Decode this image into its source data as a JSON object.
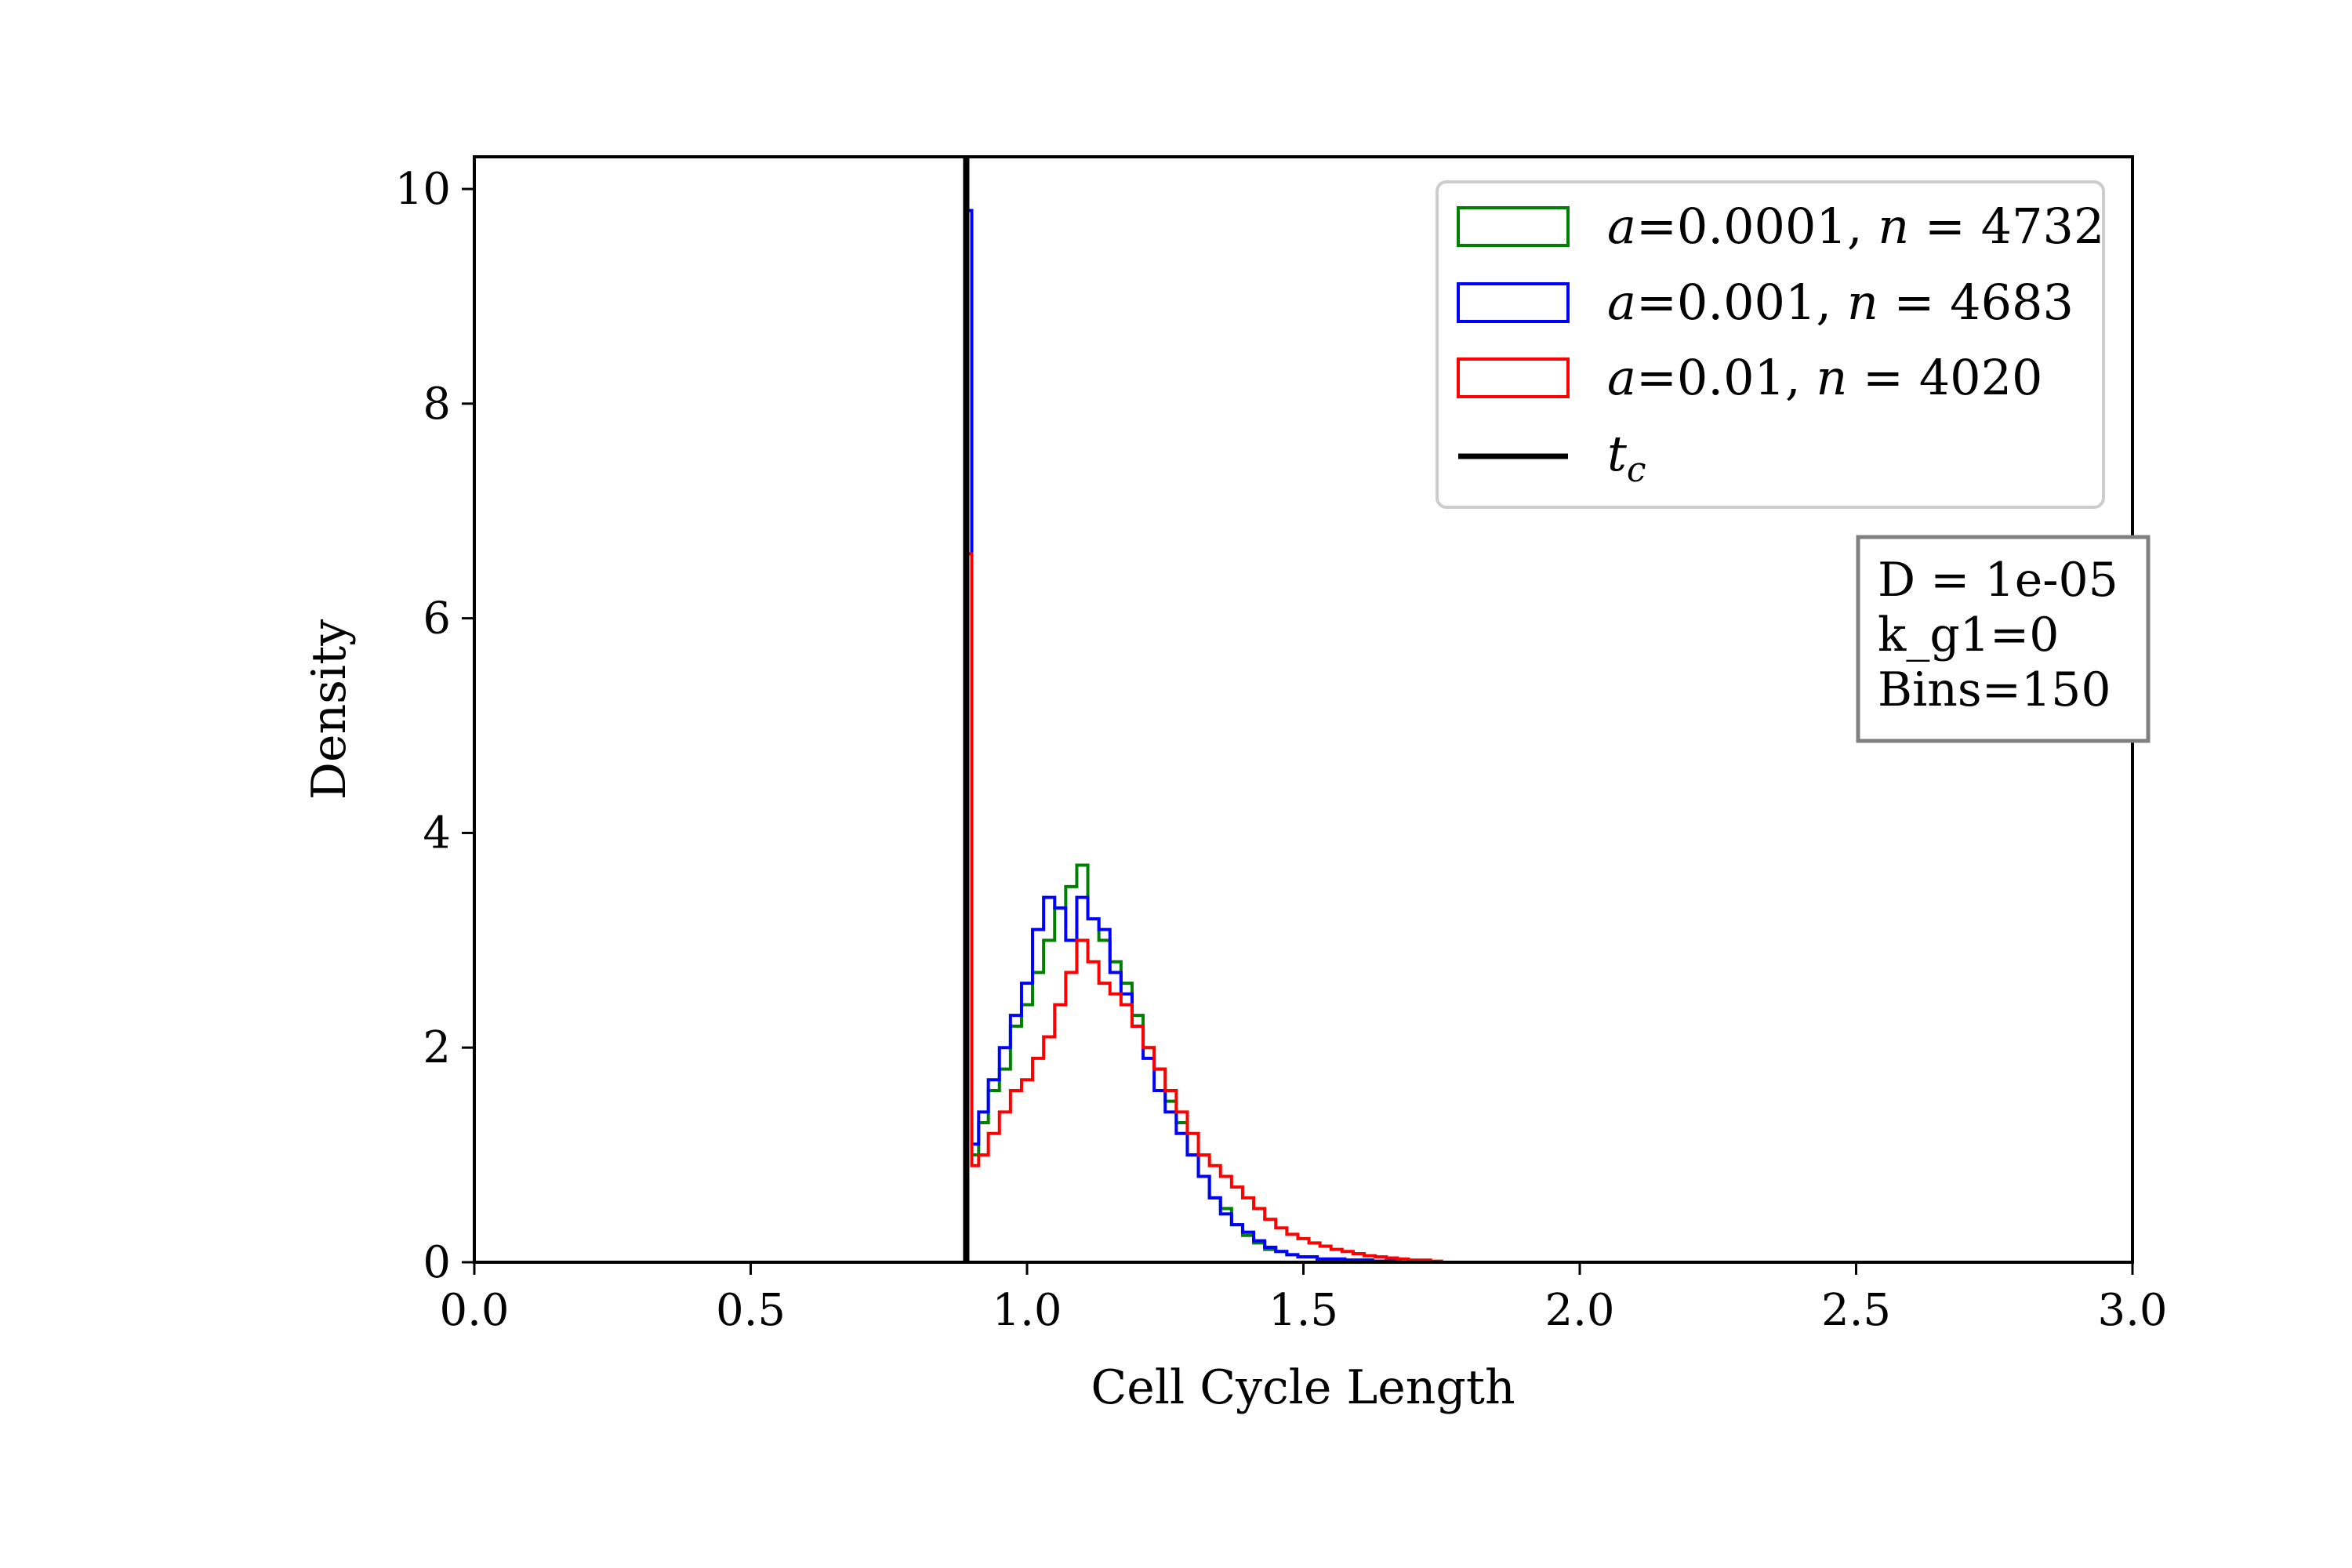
{
  "chart_data": {
    "type": "histogram",
    "xlabel": "Cell Cycle Length",
    "ylabel": "Density",
    "xlim": [
      0.0,
      3.0
    ],
    "ylim": [
      0,
      10.3
    ],
    "xticks": [
      "0.0",
      "0.5",
      "1.0",
      "1.5",
      "2.0",
      "2.5",
      "3.0"
    ],
    "yticks": [
      "0",
      "2",
      "4",
      "6",
      "8",
      "10"
    ],
    "grid": false,
    "legend_position": "top-right",
    "vline": {
      "name": "t_c",
      "x": 0.89,
      "color": "#000000"
    },
    "info_box": [
      "D = 1e-05",
      "k_g1=0",
      "Bins=150"
    ],
    "series": [
      {
        "name": "a=0.0001, n = 4732",
        "legend": {
          "a": "a",
          "a_val": "=0.0001, ",
          "n": "n",
          "n_val": " = 4732"
        },
        "color": "#008000",
        "x": [
          0.895,
          0.905,
          0.92,
          0.94,
          0.96,
          0.98,
          1.0,
          1.02,
          1.04,
          1.06,
          1.08,
          1.1,
          1.12,
          1.14,
          1.16,
          1.18,
          1.2,
          1.22,
          1.24,
          1.26,
          1.28,
          1.3,
          1.32,
          1.34,
          1.36,
          1.38,
          1.4,
          1.42,
          1.44,
          1.46,
          1.48,
          1.5,
          1.55,
          1.6,
          1.65,
          1.7
        ],
        "y": [
          9.8,
          1.0,
          1.3,
          1.6,
          1.8,
          2.2,
          2.4,
          2.7,
          3.0,
          3.3,
          3.5,
          3.7,
          3.2,
          3.0,
          2.8,
          2.6,
          2.3,
          2.0,
          1.8,
          1.5,
          1.3,
          1.0,
          0.8,
          0.6,
          0.5,
          0.35,
          0.25,
          0.18,
          0.12,
          0.1,
          0.07,
          0.05,
          0.03,
          0.02,
          0.01,
          0.0
        ]
      },
      {
        "name": "a=0.001, n = 4683",
        "legend": {
          "a": "a",
          "a_val": "=0.001, ",
          "n": "n",
          "n_val": " = 4683"
        },
        "color": "#0000ff",
        "x": [
          0.895,
          0.905,
          0.92,
          0.94,
          0.96,
          0.98,
          1.0,
          1.02,
          1.04,
          1.06,
          1.08,
          1.1,
          1.12,
          1.14,
          1.16,
          1.18,
          1.2,
          1.22,
          1.24,
          1.26,
          1.28,
          1.3,
          1.32,
          1.34,
          1.36,
          1.38,
          1.4,
          1.42,
          1.44,
          1.46,
          1.48,
          1.5,
          1.55,
          1.6,
          1.65,
          1.7
        ],
        "y": [
          9.8,
          1.1,
          1.4,
          1.7,
          2.0,
          2.3,
          2.6,
          3.1,
          3.4,
          3.3,
          3.0,
          3.4,
          3.2,
          3.1,
          2.7,
          2.5,
          2.2,
          1.9,
          1.6,
          1.4,
          1.2,
          1.0,
          0.8,
          0.6,
          0.45,
          0.35,
          0.28,
          0.2,
          0.14,
          0.1,
          0.07,
          0.05,
          0.03,
          0.02,
          0.01,
          0.0
        ]
      },
      {
        "name": "a=0.01, n = 4020",
        "legend": {
          "a": "a",
          "a_val": "=0.01, ",
          "n": "n",
          "n_val": " = 4020"
        },
        "color": "#ff0000",
        "x": [
          0.895,
          0.905,
          0.92,
          0.94,
          0.96,
          0.98,
          1.0,
          1.02,
          1.04,
          1.06,
          1.08,
          1.1,
          1.12,
          1.14,
          1.16,
          1.18,
          1.2,
          1.22,
          1.24,
          1.26,
          1.28,
          1.3,
          1.32,
          1.34,
          1.36,
          1.38,
          1.4,
          1.42,
          1.44,
          1.46,
          1.48,
          1.5,
          1.52,
          1.54,
          1.56,
          1.58,
          1.6,
          1.62,
          1.64,
          1.66,
          1.68,
          1.7,
          1.72,
          1.74
        ],
        "y": [
          6.6,
          0.9,
          1.0,
          1.2,
          1.4,
          1.6,
          1.7,
          1.9,
          2.1,
          2.4,
          2.7,
          3.0,
          2.8,
          2.6,
          2.5,
          2.4,
          2.2,
          2.0,
          1.8,
          1.6,
          1.4,
          1.2,
          1.0,
          0.9,
          0.8,
          0.7,
          0.6,
          0.5,
          0.4,
          0.32,
          0.26,
          0.22,
          0.18,
          0.15,
          0.12,
          0.1,
          0.08,
          0.06,
          0.05,
          0.04,
          0.03,
          0.02,
          0.02,
          0.01
        ]
      }
    ]
  }
}
